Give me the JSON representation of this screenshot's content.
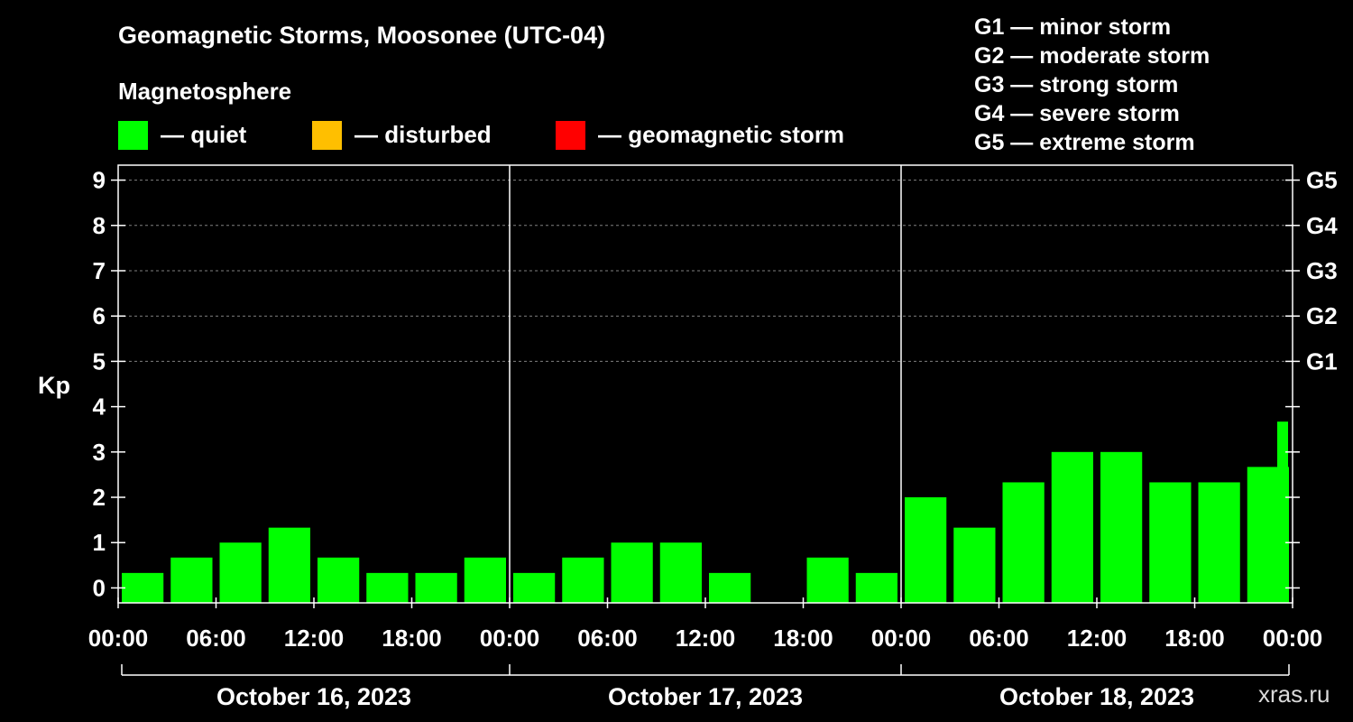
{
  "header": {
    "title": "Geomagnetic Storms, Moosonee (UTC-04)",
    "subtitle": "Magnetosphere"
  },
  "legend": {
    "items": [
      {
        "label": "— quiet",
        "color": "#00ff00"
      },
      {
        "label": "— disturbed",
        "color": "#ffbf00"
      },
      {
        "label": "— geomagnetic storm",
        "color": "#ff0000"
      }
    ]
  },
  "storm_scale": [
    "G1 — minor storm",
    "G2 — moderate storm",
    "G3 — strong storm",
    "G4 — severe storm",
    "G5 — extreme storm"
  ],
  "watermark": "xras.ru",
  "colors": {
    "background": "#000000",
    "axis": "#ffffff",
    "grid": "#808080",
    "quiet": "#00ff00"
  },
  "chart_data": {
    "type": "bar",
    "title": "Geomagnetic Storms, Moosonee (UTC-04)",
    "ylabel": "Kp",
    "ylim": [
      -0.33,
      9.33
    ],
    "y_ticks": [
      "0",
      "1",
      "2",
      "3",
      "4",
      "5",
      "6",
      "7",
      "8",
      "9"
    ],
    "right_ticks": [
      {
        "y": 5,
        "label": "G1"
      },
      {
        "y": 6,
        "label": "G2"
      },
      {
        "y": 7,
        "label": "G3"
      },
      {
        "y": 8,
        "label": "G4"
      },
      {
        "y": 9,
        "label": "G5"
      }
    ],
    "x_range_hours": [
      0,
      72
    ],
    "x_tick_labels": [
      "00:00",
      "06:00",
      "12:00",
      "18:00",
      "00:00",
      "06:00",
      "12:00",
      "18:00",
      "00:00",
      "06:00",
      "12:00",
      "18:00",
      "00:00"
    ],
    "day_labels": [
      "October 16, 2023",
      "October 17, 2023",
      "October 18, 2023"
    ],
    "grid": true,
    "bar_hours": 3,
    "values": [
      0.33,
      0.67,
      1.0,
      1.33,
      0.67,
      0.33,
      0.33,
      0.67,
      0.33,
      0.67,
      1.0,
      1.0,
      0.33,
      null,
      0.67,
      0.33,
      2.0,
      1.33,
      2.33,
      3.0,
      3.0,
      2.33,
      2.33,
      2.67
    ],
    "partial_bar": {
      "start_hour": 72,
      "value": 3.67
    }
  }
}
